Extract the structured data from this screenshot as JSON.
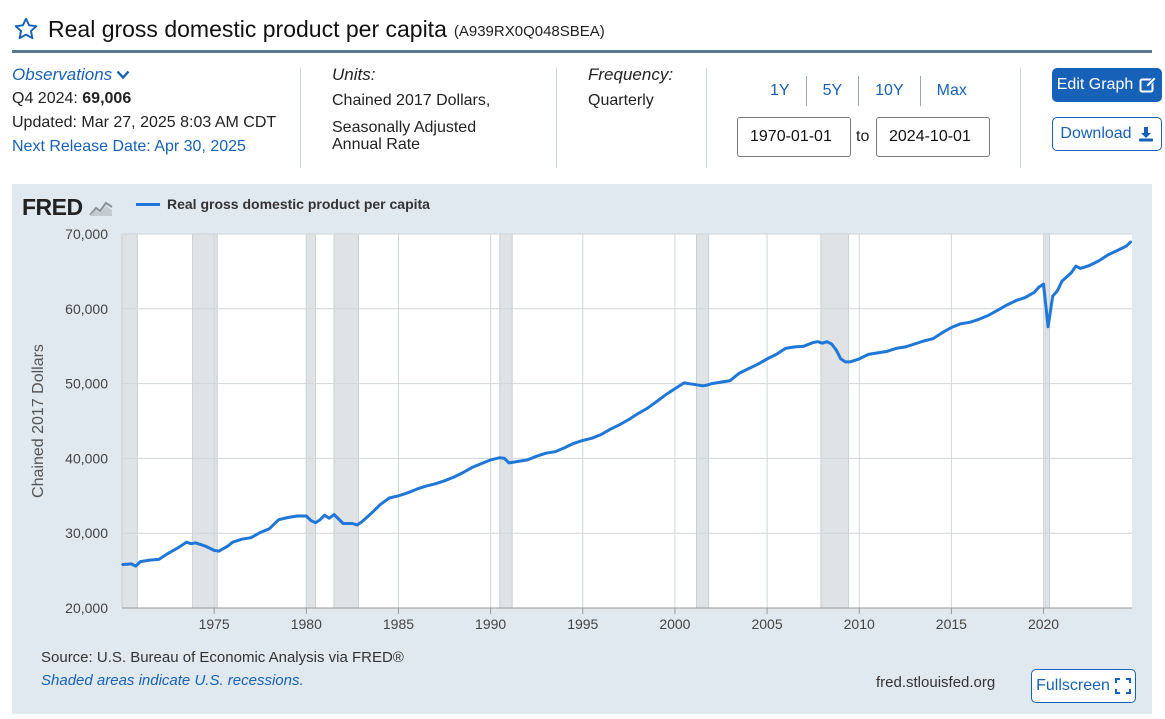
{
  "header": {
    "title": "Real gross domestic product per capita",
    "series_id": "(A939RX0Q048SBEA)",
    "star_icon": "star-outline-icon"
  },
  "observations": {
    "label": "Observations",
    "latest_label": "Q4 2024:",
    "latest_value": "69,006",
    "updated": "Updated: Mar 27, 2025 8:03 AM CDT",
    "next_release": "Next Release Date: Apr 30, 2025"
  },
  "units": {
    "label": "Units:",
    "line1": "Chained 2017 Dollars,",
    "line2": "Seasonally Adjusted",
    "line3": "Annual Rate"
  },
  "frequency": {
    "label": "Frequency:",
    "value": "Quarterly"
  },
  "range": {
    "buttons": [
      "1Y",
      "5Y",
      "10Y",
      "Max"
    ],
    "start": "1970-01-01",
    "to_label": "to",
    "end": "2024-10-01"
  },
  "actions": {
    "edit_graph": "Edit Graph",
    "download": "Download",
    "fullscreen": "Fullscreen"
  },
  "graph": {
    "logo": "FRED",
    "source": "Source: U.S. Bureau of Economic Analysis via FRED®",
    "recession_note": "Shaded areas indicate U.S. recessions.",
    "url": "fred.stlouisfed.org"
  },
  "colors": {
    "accent": "#1762b8",
    "line": "#1f77d8",
    "panel_bg": "#e1e9f0",
    "recession": "#dfe3e6"
  },
  "chart_data": {
    "type": "line",
    "title": "",
    "xlabel": "",
    "ylabel": "Chained 2017 Dollars",
    "ylim": [
      20000,
      70000
    ],
    "xlim": [
      1970.0,
      2024.8
    ],
    "y_ticks": [
      20000,
      30000,
      40000,
      50000,
      60000,
      70000
    ],
    "y_tick_labels": [
      "20,000",
      "30,000",
      "40,000",
      "50,000",
      "60,000",
      "70,000"
    ],
    "x_ticks": [
      1975,
      1980,
      1985,
      1990,
      1995,
      2000,
      2005,
      2010,
      2015,
      2020
    ],
    "x_tick_labels": [
      "1975",
      "1980",
      "1985",
      "1990",
      "1995",
      "2000",
      "2005",
      "2010",
      "2015",
      "2020"
    ],
    "grid": true,
    "legend": "top-left",
    "recessions": [
      [
        1970.0,
        1970.83
      ],
      [
        1973.83,
        1975.17
      ],
      [
        1980.0,
        1980.5
      ],
      [
        1981.5,
        1982.83
      ],
      [
        1990.5,
        1991.17
      ],
      [
        2001.17,
        2001.83
      ],
      [
        2007.92,
        2009.42
      ],
      [
        2020.08,
        2020.33
      ]
    ],
    "series": [
      {
        "name": "Real gross domestic product per capita",
        "x": [
          1970.0,
          1970.5,
          1970.75,
          1971.0,
          1971.5,
          1972.0,
          1972.5,
          1973.0,
          1973.5,
          1973.75,
          1974.0,
          1974.5,
          1975.0,
          1975.25,
          1975.75,
          1976.0,
          1976.5,
          1977.0,
          1977.5,
          1978.0,
          1978.5,
          1979.0,
          1979.5,
          1980.0,
          1980.25,
          1980.5,
          1980.75,
          1981.0,
          1981.25,
          1981.5,
          1981.75,
          1982.0,
          1982.5,
          1982.75,
          1983.0,
          1983.5,
          1984.0,
          1984.5,
          1985.0,
          1985.5,
          1986.0,
          1986.5,
          1987.0,
          1987.5,
          1988.0,
          1988.5,
          1989.0,
          1989.5,
          1990.0,
          1990.5,
          1990.75,
          1991.0,
          1991.5,
          1992.0,
          1992.5,
          1993.0,
          1993.5,
          1994.0,
          1994.5,
          1995.0,
          1995.5,
          1996.0,
          1996.5,
          1997.0,
          1997.5,
          1998.0,
          1998.5,
          1999.0,
          1999.5,
          2000.0,
          2000.5,
          2000.75,
          2001.0,
          2001.5,
          2001.75,
          2002.0,
          2002.5,
          2003.0,
          2003.5,
          2004.0,
          2004.5,
          2005.0,
          2005.5,
          2006.0,
          2006.5,
          2007.0,
          2007.5,
          2007.75,
          2008.0,
          2008.25,
          2008.5,
          2008.75,
          2009.0,
          2009.25,
          2009.5,
          2010.0,
          2010.5,
          2011.0,
          2011.5,
          2012.0,
          2012.5,
          2013.0,
          2013.5,
          2014.0,
          2014.5,
          2015.0,
          2015.5,
          2016.0,
          2016.5,
          2017.0,
          2017.5,
          2018.0,
          2018.5,
          2019.0,
          2019.5,
          2019.75,
          2020.0,
          2020.25,
          2020.5,
          2020.75,
          2021.0,
          2021.5,
          2021.75,
          2022.0,
          2022.5,
          2023.0,
          2023.5,
          2024.0,
          2024.5,
          2024.75
        ],
        "values": [
          25800,
          25900,
          25600,
          26200,
          26400,
          26500,
          27300,
          28000,
          28800,
          28600,
          28700,
          28300,
          27700,
          27600,
          28300,
          28800,
          29200,
          29400,
          30100,
          30600,
          31800,
          32100,
          32300,
          32300,
          31700,
          31400,
          31800,
          32400,
          32000,
          32500,
          31900,
          31300,
          31300,
          31100,
          31500,
          32600,
          33800,
          34700,
          35000,
          35400,
          35900,
          36300,
          36600,
          37000,
          37500,
          38100,
          38800,
          39300,
          39800,
          40100,
          40000,
          39400,
          39600,
          39800,
          40300,
          40700,
          40900,
          41400,
          42000,
          42400,
          42700,
          43200,
          43900,
          44500,
          45200,
          46000,
          46700,
          47600,
          48500,
          49300,
          50100,
          50000,
          49900,
          49700,
          49800,
          50000,
          50200,
          50400,
          51400,
          52000,
          52600,
          53300,
          53900,
          54700,
          54900,
          55000,
          55500,
          55600,
          55400,
          55600,
          55300,
          54500,
          53300,
          52900,
          52900,
          53300,
          53900,
          54100,
          54300,
          54700,
          54900,
          55300,
          55700,
          56000,
          56800,
          57500,
          58000,
          58200,
          58600,
          59100,
          59800,
          60500,
          61100,
          61500,
          62200,
          62900,
          63300,
          57600,
          61700,
          62400,
          63700,
          64800,
          65700,
          65400,
          65800,
          66400,
          67200,
          67800,
          68400,
          69006
        ]
      }
    ]
  }
}
